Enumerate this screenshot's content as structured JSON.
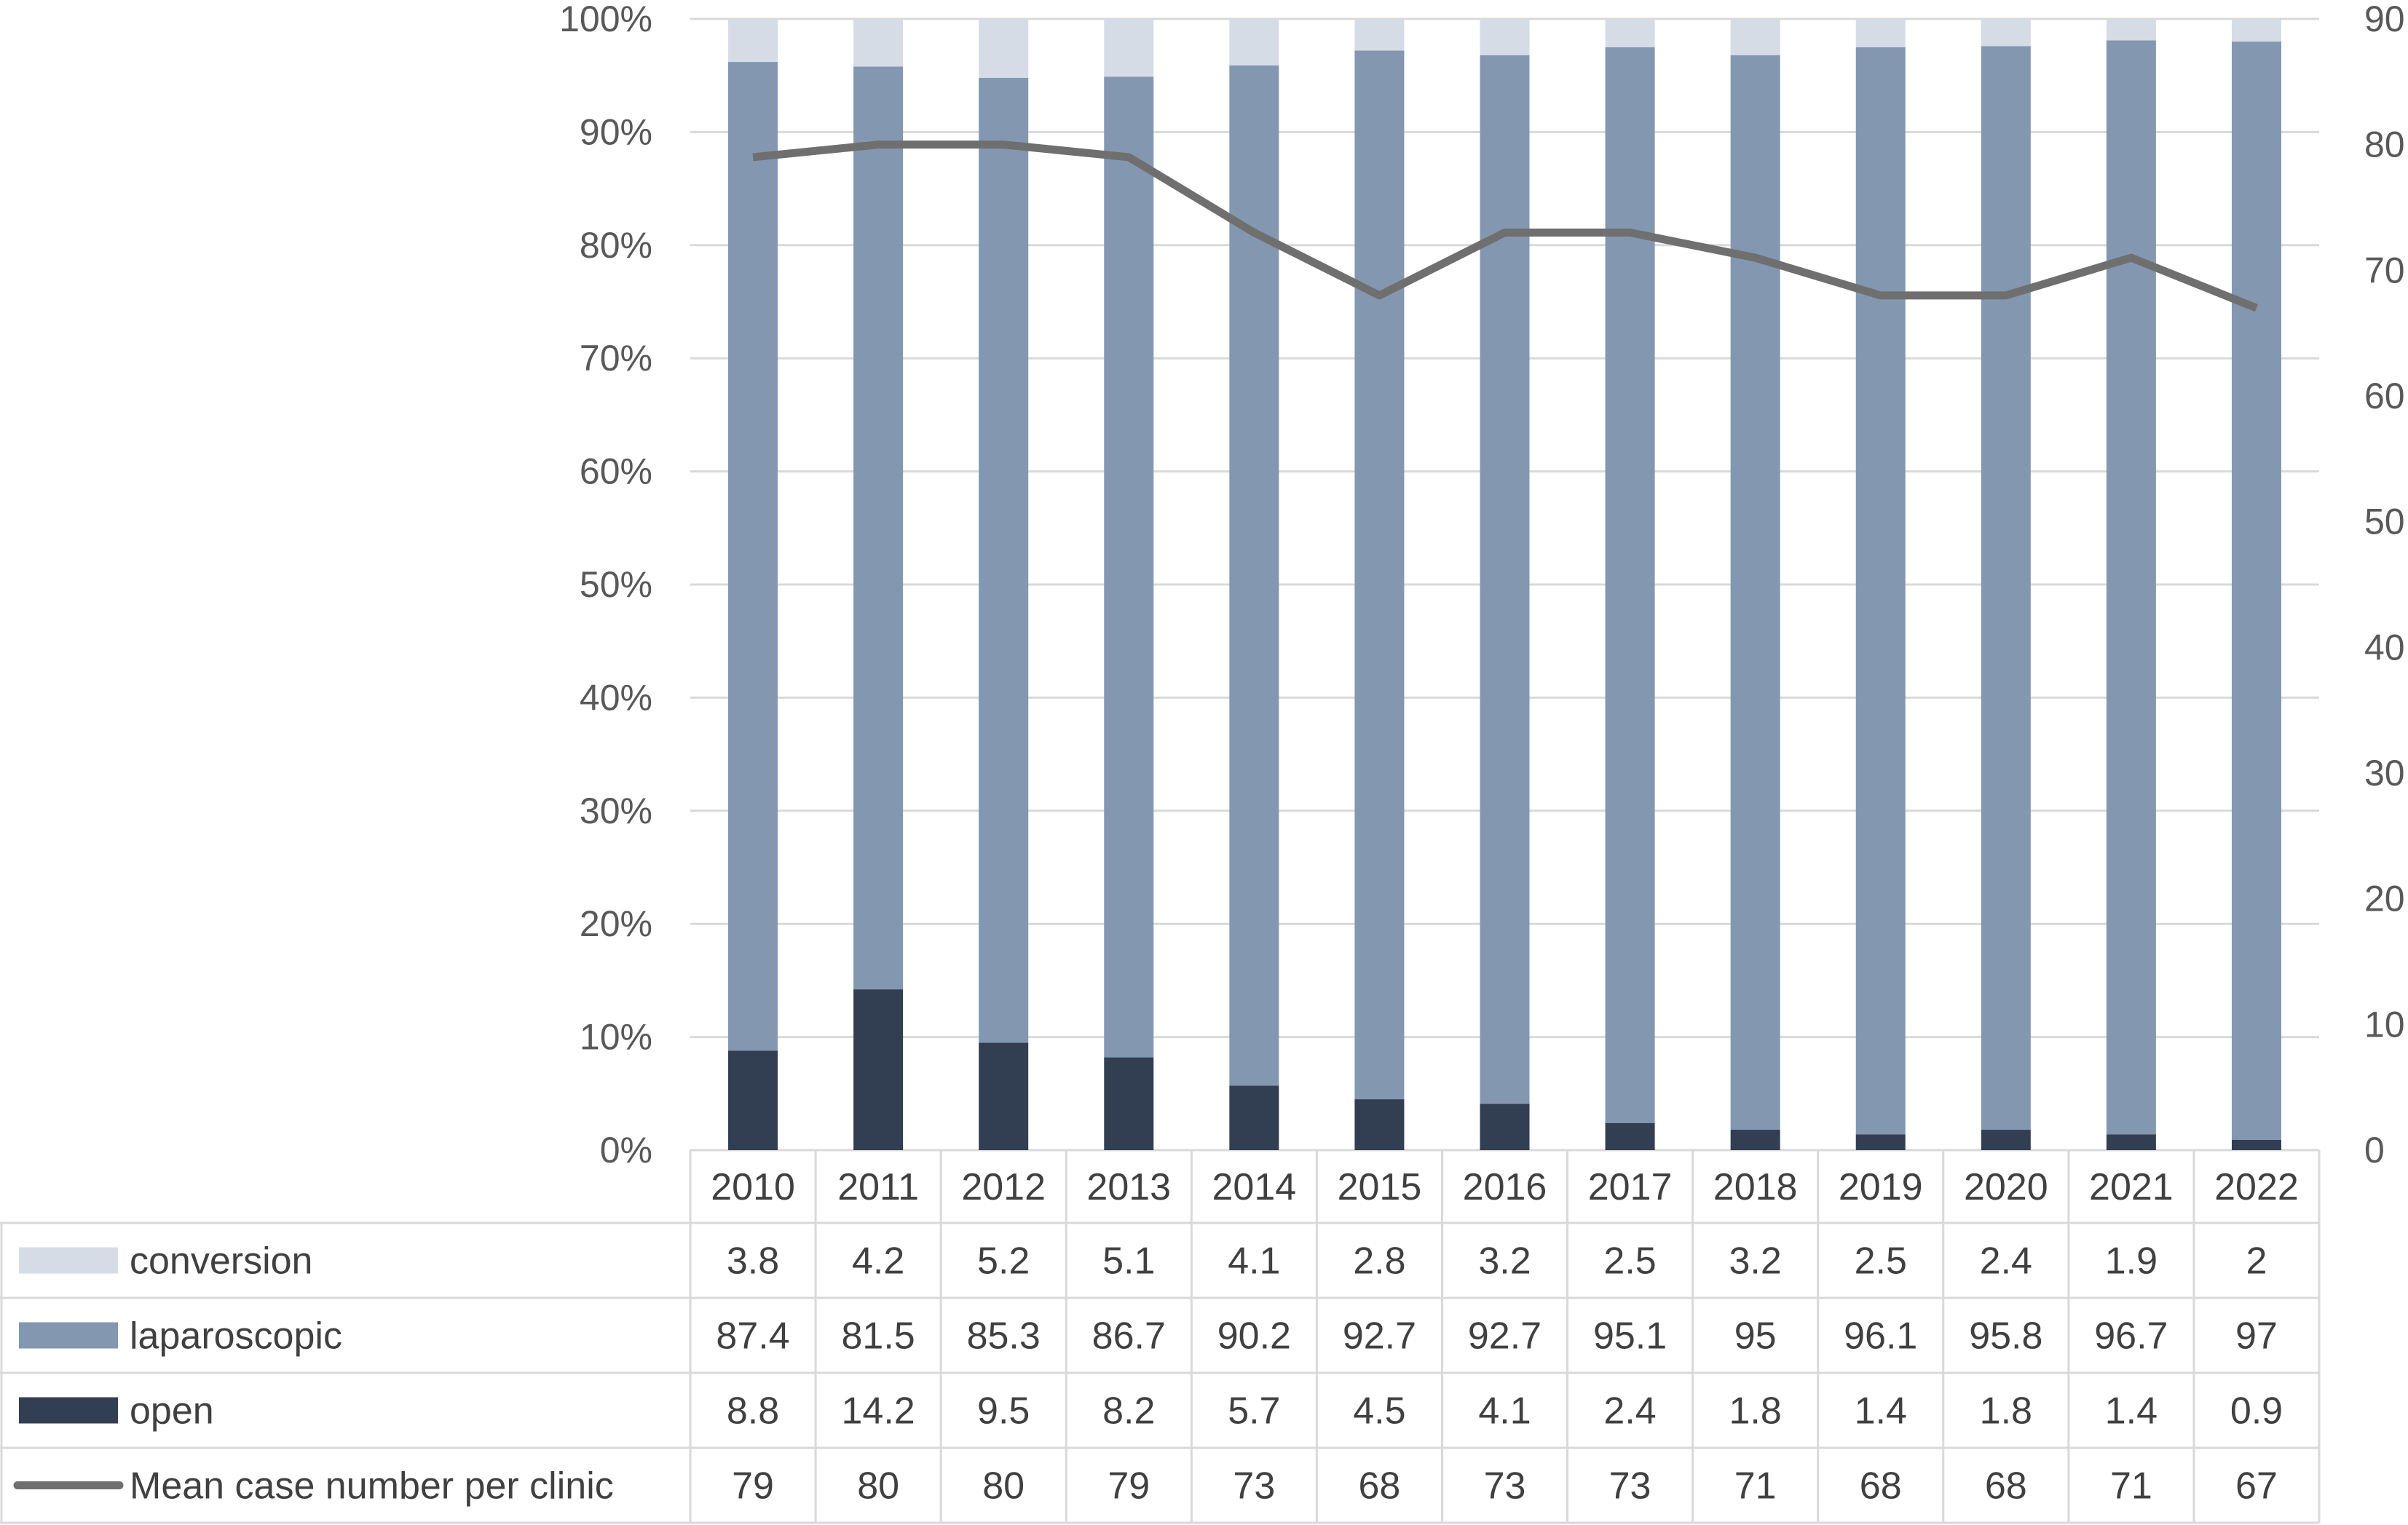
{
  "chart_data": {
    "type": "bar",
    "stacked": true,
    "percent_stacked": true,
    "categories": [
      "2010",
      "2011",
      "2012",
      "2013",
      "2014",
      "2015",
      "2016",
      "2017",
      "2018",
      "2019",
      "2020",
      "2021",
      "2022"
    ],
    "series": [
      {
        "name": "open",
        "kind": "bar",
        "axis": "left",
        "color": "#323e51",
        "values": [
          8.8,
          14.2,
          9.5,
          8.2,
          5.7,
          4.5,
          4.1,
          2.4,
          1.8,
          1.4,
          1.8,
          1.4,
          0.9
        ],
        "labels": [
          "8.8",
          "14.2",
          "9.5",
          "8.2",
          "5.7",
          "4.5",
          "4.1",
          "2.4",
          "1.8",
          "1.4",
          "1.8",
          "1.4",
          "0.9"
        ]
      },
      {
        "name": "laparoscopic",
        "kind": "bar",
        "axis": "left",
        "color": "#8497b0",
        "values": [
          87.4,
          81.5,
          85.3,
          86.7,
          90.2,
          92.7,
          92.7,
          95.1,
          95,
          96.1,
          95.8,
          96.7,
          97
        ],
        "labels": [
          "87.4",
          "81.5",
          "85.3",
          "86.7",
          "90.2",
          "92.7",
          "92.7",
          "95.1",
          "95",
          "96.1",
          "95.8",
          "96.7",
          "97"
        ]
      },
      {
        "name": "conversion",
        "kind": "bar",
        "axis": "left",
        "color": "#d6dce5",
        "values": [
          3.8,
          4.2,
          5.2,
          5.1,
          4.1,
          2.8,
          3.2,
          2.5,
          3.2,
          2.5,
          2.4,
          1.9,
          2
        ],
        "labels": [
          "3.8",
          "4.2",
          "5.2",
          "5.1",
          "4.1",
          "2.8",
          "3.2",
          "2.5",
          "3.2",
          "2.5",
          "2.4",
          "1.9",
          "2"
        ]
      },
      {
        "name": "Mean case number per clinic",
        "kind": "line",
        "axis": "right",
        "color": "#6f6f6f",
        "values": [
          79,
          80,
          80,
          79,
          73,
          68,
          73,
          73,
          71,
          68,
          68,
          71,
          67
        ],
        "labels": [
          "79",
          "80",
          "80",
          "79",
          "73",
          "68",
          "73",
          "73",
          "71",
          "68",
          "68",
          "71",
          "67"
        ]
      }
    ],
    "y_left": {
      "min": 0,
      "max": 100,
      "ticks": [
        "0%",
        "10%",
        "20%",
        "30%",
        "40%",
        "50%",
        "60%",
        "70%",
        "80%",
        "90%",
        "100%"
      ]
    },
    "y_right": {
      "min": 0,
      "max": 90,
      "ticks": [
        "0",
        "10",
        "20",
        "30",
        "40",
        "50",
        "60",
        "70",
        "80",
        "90"
      ]
    },
    "table_row_order": [
      "conversion",
      "laparoscopic",
      "open",
      "Mean case number per clinic"
    ],
    "grid": true,
    "legend": "data-table"
  }
}
